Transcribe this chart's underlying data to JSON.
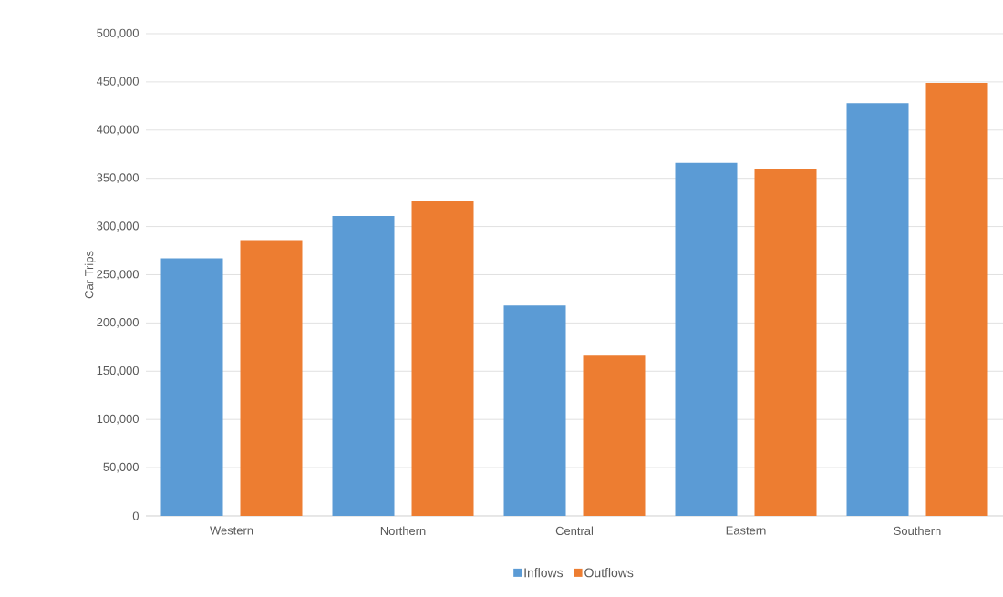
{
  "chart_data": {
    "type": "bar",
    "ylabel": "Car Trips",
    "categories": [
      "Western",
      "Northern",
      "Central",
      "Eastern",
      "Southern"
    ],
    "series": [
      {
        "name": "Inflows",
        "color": "#5b9bd5",
        "values": [
          267000,
          311000,
          218000,
          366000,
          428000
        ]
      },
      {
        "name": "Outflows",
        "color": "#ed7d31",
        "values": [
          286000,
          326000,
          166000,
          360000,
          449000
        ]
      }
    ],
    "ylim": [
      0,
      500000
    ],
    "yticks": [
      0,
      {
        "value": 50000,
        "label": "50,000"
      },
      {
        "value": 100000,
        "label": "100,000"
      },
      {
        "value": 150000,
        "label": "150,000"
      },
      {
        "value": 200000,
        "label": "200,000"
      },
      {
        "value": 250000,
        "label": "250,000"
      },
      {
        "value": 300000,
        "label": "300,000"
      },
      {
        "value": 350000,
        "label": "350,000"
      },
      {
        "value": 400000,
        "label": "400,000"
      },
      {
        "value": 450000,
        "label": "450,000"
      },
      {
        "value": 500000,
        "label": "500,000"
      }
    ],
    "grid": "y",
    "legend": "bottom"
  }
}
